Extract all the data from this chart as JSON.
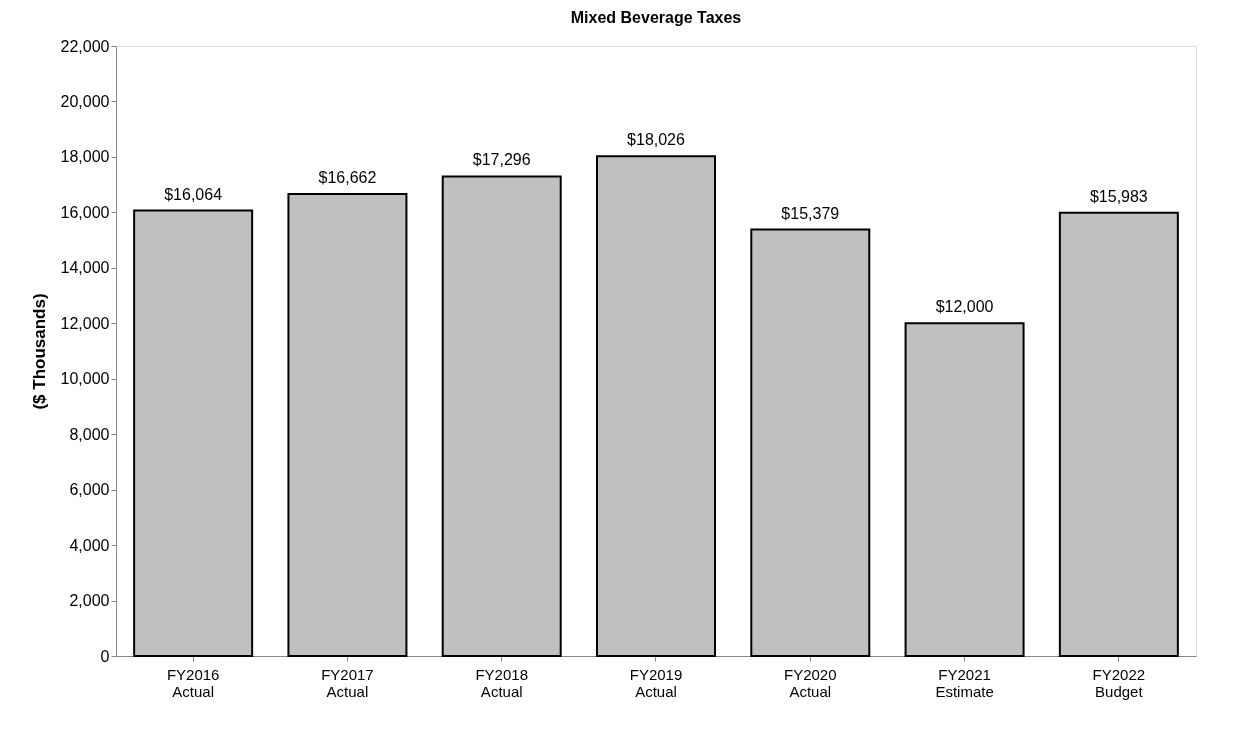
{
  "chart_data": {
    "type": "bar",
    "title": "Mixed Beverage Taxes",
    "ylabel": "($ Thousands)",
    "categories": [
      "FY2016 Actual",
      "FY2017 Actual",
      "FY2018 Actual",
      "FY2019 Actual",
      "FY2020 Actual",
      "FY2021 Estimate",
      "FY2022 Budget"
    ],
    "values": [
      16064,
      16662,
      17296,
      18026,
      15379,
      12000,
      15983
    ],
    "value_labels": [
      "$16,064",
      "$16,662",
      "$17,296",
      "$18,026",
      "$15,379",
      "$12,000",
      "$15,983"
    ],
    "color": "#c0c0c0",
    "ylim": [
      0,
      22000
    ],
    "yticks": [
      0,
      {
        "value": 2000,
        "label": "2,000"
      },
      {
        "value": 4000,
        "label": "4,000"
      },
      {
        "value": 6000,
        "label": "6,000"
      },
      {
        "value": 8000,
        "label": "8,000"
      },
      {
        "value": 10000,
        "label": "10,000"
      },
      {
        "value": 12000,
        "label": "12,000"
      },
      {
        "value": 14000,
        "label": "14,000"
      },
      {
        "value": 16000,
        "label": "16,000"
      },
      {
        "value": 18000,
        "label": "18,000"
      },
      {
        "value": 20000,
        "label": "20,000"
      },
      {
        "value": 22000,
        "label": "22,000"
      }
    ],
    "grid": false
  }
}
